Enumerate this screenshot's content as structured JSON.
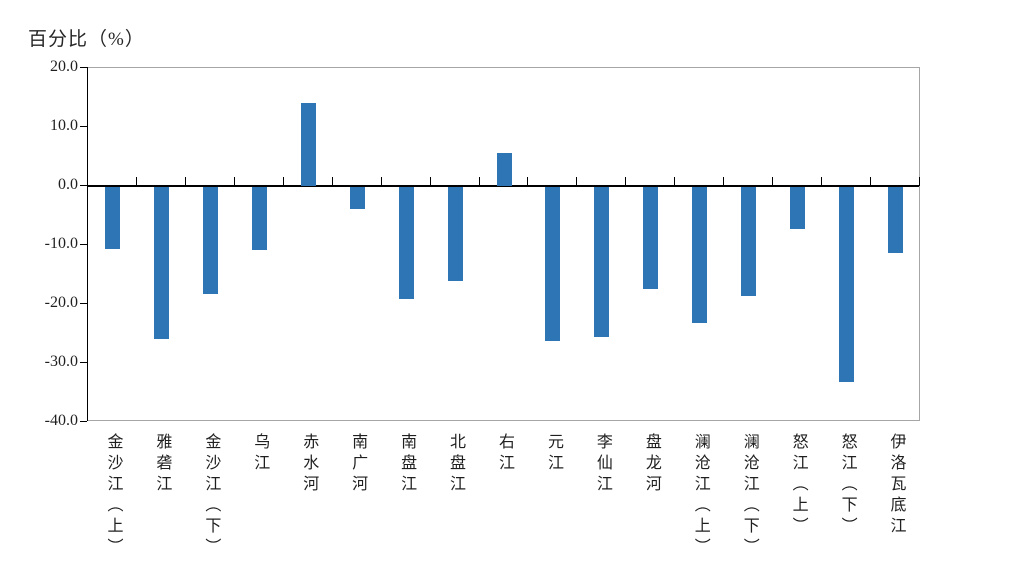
{
  "chart_data": {
    "type": "bar",
    "title": "百分比（%）",
    "xlabel": "",
    "ylabel": "百分比（%）",
    "categories": [
      "金沙江（上）",
      "雅砻江",
      "金沙江（下）",
      "乌江",
      "赤水河",
      "南广河",
      "南盘江",
      "北盘江",
      "右江",
      "元江",
      "李仙江",
      "盘龙河",
      "澜沧江（上）",
      "澜沧江（下）",
      "怒江（上）",
      "怒江（下）",
      "伊洛瓦底江"
    ],
    "values": [
      -10.6,
      -25.8,
      -18.2,
      -10.7,
      14.0,
      -3.7,
      -19.0,
      -16.0,
      5.6,
      -26.1,
      -25.4,
      -17.4,
      -23.1,
      -18.6,
      -7.1,
      -33.1,
      -11.2
    ],
    "ylim": [
      -40,
      20
    ],
    "ytick_step": 10,
    "y_tick_labels": [
      "20.0",
      "10.0",
      "0.0",
      "-10.0",
      "-20.0",
      "-30.0",
      "-40.0"
    ],
    "grid": false,
    "legend": false,
    "bar_color": "#2E75B6",
    "axis_color": "#000000",
    "frame_color": "#A6A6A6"
  }
}
